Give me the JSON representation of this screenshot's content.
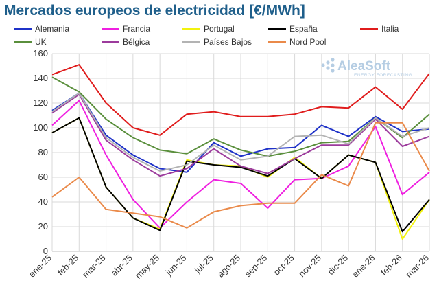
{
  "title": "Mercados europeos de electricidad [€/MWh]",
  "logo": {
    "name": "AleaSoft",
    "tagline": "ENERGY FORECASTING"
  },
  "chart_data": {
    "type": "line",
    "title": "Mercados europeos de electricidad [€/MWh]",
    "xlabel": "",
    "ylabel": "",
    "ylim": [
      0,
      160
    ],
    "yticks": [
      0,
      20,
      40,
      60,
      80,
      100,
      120,
      140,
      160
    ],
    "grid": true,
    "legend_position": "top",
    "categories": [
      "ene-25",
      "feb-25",
      "mar-25",
      "abr-25",
      "may-25",
      "jun-25",
      "jul-25",
      "ago-25",
      "sep-25",
      "oct-25",
      "nov-25",
      "dic-25",
      "ene-26",
      "feb-26",
      "mar-26"
    ],
    "series": [
      {
        "name": "Alemania",
        "color": "#1f32c8",
        "values": [
          114,
          128,
          94,
          78,
          67,
          64,
          88,
          77,
          83,
          84,
          102,
          93,
          109,
          97,
          99
        ]
      },
      {
        "name": "Francia",
        "color": "#ef1fe0",
        "values": [
          102,
          122,
          78,
          42,
          19,
          40,
          58,
          55,
          35,
          58,
          59,
          69,
          101,
          46,
          64
        ]
      },
      {
        "name": "Portugal",
        "color": "#f2f20e",
        "values": [
          96,
          108,
          52,
          27,
          18,
          74,
          70,
          69,
          60,
          76,
          59,
          78,
          72,
          10,
          42
        ]
      },
      {
        "name": "España",
        "color": "#000000",
        "values": [
          96,
          108,
          52,
          27,
          17,
          73,
          70,
          68,
          61,
          75,
          59,
          78,
          72,
          16,
          42
        ]
      },
      {
        "name": "Italia",
        "color": "#e01c1c",
        "values": [
          143,
          151,
          120,
          100,
          94,
          111,
          113,
          109,
          109,
          111,
          117,
          116,
          133,
          115,
          144
        ]
      },
      {
        "name": "UK",
        "color": "#5a8f3c",
        "values": [
          141,
          129,
          107,
          92,
          82,
          79,
          91,
          82,
          77,
          81,
          88,
          89,
          108,
          92,
          111
        ]
      },
      {
        "name": "Bélgica",
        "color": "#9c3b9c",
        "values": [
          112,
          127,
          90,
          74,
          61,
          67,
          83,
          69,
          63,
          75,
          86,
          86,
          107,
          85,
          93
        ]
      },
      {
        "name": "Países Bajos",
        "color": "#b3b3b3",
        "values": [
          113,
          128,
          92,
          76,
          65,
          70,
          86,
          74,
          77,
          93,
          94,
          87,
          108,
          93,
          100
        ]
      },
      {
        "name": "Nord Pool",
        "color": "#ea8a4a",
        "values": [
          44,
          60,
          34,
          31,
          28,
          19,
          32,
          37,
          39,
          39,
          62,
          53,
          104,
          104,
          65
        ]
      }
    ]
  }
}
